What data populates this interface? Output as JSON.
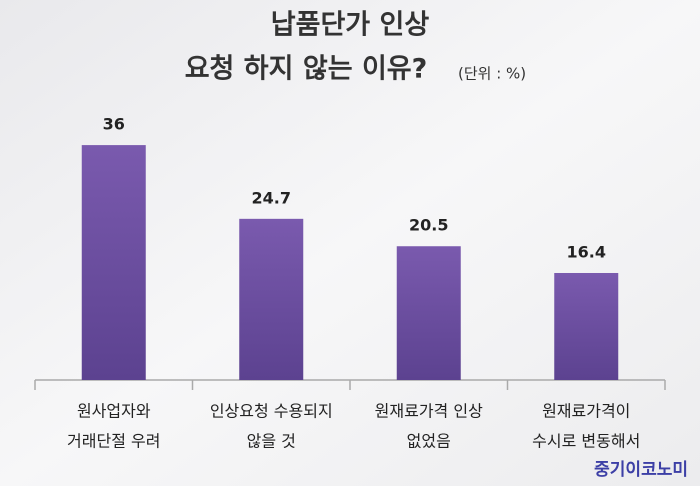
{
  "chart_data": {
    "type": "bar",
    "title": [
      "납품단가 인상",
      "요청 하지 않는 이유?"
    ],
    "unit": "(단위 : %)",
    "categories": [
      [
        "원사업자와",
        "거래단절 우려"
      ],
      [
        "인상요청 수용되지",
        "않을 것"
      ],
      [
        "원재료가격 인상",
        "없었음"
      ],
      [
        "원재료가격이",
        "수시로 변동해서"
      ]
    ],
    "values": [
      36,
      24.7,
      20.5,
      16.4
    ],
    "color": "#6b4f9e",
    "ylim": [
      0,
      40
    ],
    "source": "중기이코노미"
  }
}
